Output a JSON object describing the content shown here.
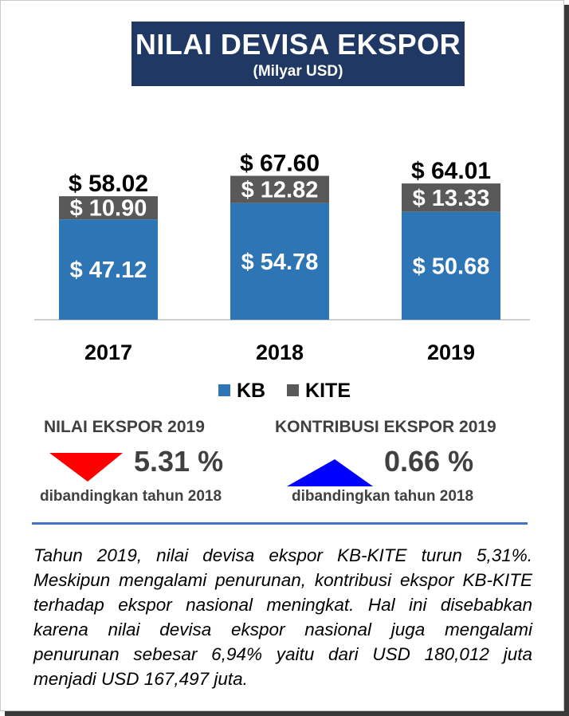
{
  "header": {
    "title": "NILAI DEVISA EKSPOR",
    "subtitle": "(Milyar USD)"
  },
  "chart_data": {
    "type": "bar",
    "stacked": true,
    "categories": [
      "2017",
      "2018",
      "2019"
    ],
    "series": [
      {
        "name": "KB",
        "values": [
          47.12,
          54.78,
          50.68
        ],
        "labels": [
          "$ 47.12",
          "$ 54.78",
          "$ 50.68"
        ],
        "color": "#2e75b6"
      },
      {
        "name": "KITE",
        "values": [
          10.9,
          12.82,
          13.33
        ],
        "labels": [
          "$ 10.90",
          "$ 12.82",
          "$ 13.33"
        ],
        "color": "#595959"
      }
    ],
    "totals": [
      58.02,
      67.6,
      64.01
    ],
    "total_labels": [
      "$ 58.02",
      "$ 67.60",
      "$ 64.01"
    ],
    "title": "NILAI DEVISA EKSPOR",
    "subtitle": "(Milyar USD)",
    "legend_position": "bottom",
    "grid": false
  },
  "legend": {
    "items": [
      {
        "label": "KB",
        "color": "#2e75b6"
      },
      {
        "label": "KITE",
        "color": "#595959"
      }
    ]
  },
  "stats": {
    "left": {
      "title": "NILAI EKSPOR 2019",
      "value": "5.31 %",
      "note": "dibandingkan tahun 2018",
      "direction": "down",
      "color": "#ff0000"
    },
    "right": {
      "title": "KONTRIBUSI EKSPOR 2019",
      "value": "0.66 %",
      "note": "dibandingkan tahun 2018",
      "direction": "up",
      "color": "#0000ff"
    }
  },
  "paragraph": "Tahun 2019, nilai devisa ekspor KB-KITE turun 5,31%. Meskipun mengalami penurunan, kontribusi ekspor KB-KITE terhadap ekspor nasional meningkat. Hal ini disebabkan karena nilai devisa ekspor nasional juga mengalami penurunan sebesar 6,94% yaitu dari USD 180,012 juta menjadi USD 167,497 juta."
}
